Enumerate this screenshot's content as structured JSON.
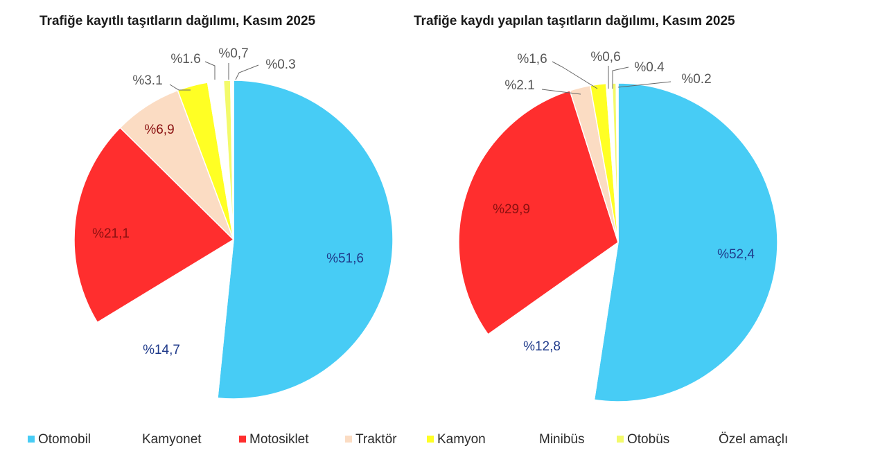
{
  "colors": {
    "otomobil": "#47ccf5",
    "kamyonet": "#ffffff",
    "motosiklet": "#ff2e2e",
    "traktor": "#fbdcc3",
    "kamyon": "#ffff24",
    "minibus": "#ffffff",
    "otobus": "#f3fa6a",
    "ozel_amacli": "#ffffff"
  },
  "legend": [
    {
      "label": "Otomobil",
      "color": "#47ccf5",
      "swatch": true
    },
    {
      "label": "Kamyonet",
      "color": "#ffffff",
      "swatch": false
    },
    {
      "label": "Motosiklet",
      "color": "#ff2e2e",
      "swatch": true
    },
    {
      "label": "Traktör",
      "color": "#fbdcc3",
      "swatch": true
    },
    {
      "label": "Kamyon",
      "color": "#ffff24",
      "swatch": true
    },
    {
      "label": "Minibüs",
      "color": "#ffffff",
      "swatch": false
    },
    {
      "label": "Otobüs",
      "color": "#f3fa6a",
      "swatch": true
    },
    {
      "label": "Özel amaçlı",
      "color": "#ffffff",
      "swatch": false
    }
  ],
  "chart_data": [
    {
      "type": "pie",
      "title": "Trafiğe kayıtlı taşıtların dağılımı, Kasım 2025",
      "categories": [
        "Otomobil",
        "Kamyonet",
        "Motosiklet",
        "Traktör",
        "Kamyon",
        "Minibüs",
        "Otobüs",
        "Özel amaçlı"
      ],
      "values": [
        51.6,
        14.7,
        21.1,
        6.9,
        3.1,
        1.6,
        0.7,
        0.3
      ],
      "labels": [
        "%51,6",
        "%14,7",
        "%21,1",
        "%6,9",
        "%3.1",
        "%1.6",
        "%0,7",
        "%0.3"
      ]
    },
    {
      "type": "pie",
      "title": "Trafiğe kaydı yapılan taşıtların dağılımı, Kasım 2025",
      "categories": [
        "Otomobil",
        "Kamyonet",
        "Motosiklet",
        "Traktör",
        "Kamyon",
        "Minibüs",
        "Otobüs",
        "Özel amaçlı"
      ],
      "values": [
        52.4,
        12.8,
        29.9,
        2.1,
        1.6,
        0.6,
        0.4,
        0.2
      ],
      "labels": [
        "%52,4",
        "%12,8",
        "%29,9",
        "%2.1",
        "%1,6",
        "%0,6",
        "%0.4",
        "%0.2"
      ]
    }
  ]
}
